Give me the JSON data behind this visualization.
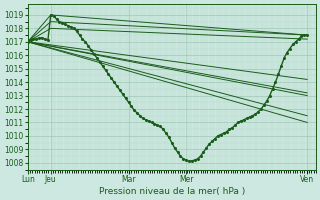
{
  "background_color": "#cce8e0",
  "grid_color_major": "#a0c8b8",
  "grid_color_minor": "#b8d8cc",
  "line_color": "#1a5c1a",
  "xlabel": "Pression niveau de la mer( hPa )",
  "ylim": [
    1007.5,
    1019.8
  ],
  "yticks": [
    1008,
    1009,
    1010,
    1011,
    1012,
    1013,
    1014,
    1015,
    1016,
    1017,
    1018,
    1019
  ],
  "xtick_labels": [
    "Lun",
    "Jeu",
    "Mar",
    "Mer",
    "Ven"
  ],
  "xtick_positions": [
    0.0,
    0.08,
    0.35,
    0.55,
    0.97
  ],
  "xlim": [
    0.0,
    1.0
  ],
  "fan_lines": [
    {
      "x": [
        0.0,
        0.08,
        0.97
      ],
      "y": [
        1017.0,
        1019.0,
        1017.5
      ]
    },
    {
      "x": [
        0.0,
        0.08,
        0.97
      ],
      "y": [
        1017.0,
        1018.5,
        1017.5
      ]
    },
    {
      "x": [
        0.0,
        0.08,
        0.97
      ],
      "y": [
        1017.0,
        1018.0,
        1017.2
      ]
    },
    {
      "x": [
        0.0,
        0.97
      ],
      "y": [
        1017.0,
        1014.2
      ]
    },
    {
      "x": [
        0.0,
        0.97
      ],
      "y": [
        1017.0,
        1013.2
      ]
    },
    {
      "x": [
        0.0,
        0.97
      ],
      "y": [
        1017.0,
        1013.0
      ]
    },
    {
      "x": [
        0.0,
        0.97
      ],
      "y": [
        1017.0,
        1011.5
      ]
    },
    {
      "x": [
        0.0,
        0.97
      ],
      "y": [
        1017.0,
        1011.0
      ]
    }
  ],
  "detailed_x": [
    0.0,
    0.01,
    0.02,
    0.03,
    0.04,
    0.05,
    0.06,
    0.07,
    0.08,
    0.09,
    0.1,
    0.11,
    0.12,
    0.13,
    0.14,
    0.15,
    0.16,
    0.17,
    0.18,
    0.19,
    0.2,
    0.21,
    0.22,
    0.23,
    0.24,
    0.25,
    0.26,
    0.27,
    0.28,
    0.29,
    0.3,
    0.31,
    0.32,
    0.33,
    0.34,
    0.35,
    0.36,
    0.37,
    0.38,
    0.39,
    0.4,
    0.41,
    0.42,
    0.43,
    0.44,
    0.45,
    0.46,
    0.47,
    0.48,
    0.49,
    0.5,
    0.51,
    0.52,
    0.53,
    0.54,
    0.55,
    0.56,
    0.57,
    0.58,
    0.59,
    0.6,
    0.61,
    0.62,
    0.63,
    0.64,
    0.65,
    0.66,
    0.67,
    0.68,
    0.69,
    0.7,
    0.71,
    0.72,
    0.73,
    0.74,
    0.75,
    0.76,
    0.77,
    0.78,
    0.79,
    0.8,
    0.81,
    0.82,
    0.83,
    0.84,
    0.85,
    0.86,
    0.87,
    0.88,
    0.89,
    0.9,
    0.91,
    0.92,
    0.93,
    0.94,
    0.95,
    0.96,
    0.97
  ],
  "detailed_y": [
    1017.0,
    1017.1,
    1017.2,
    1017.2,
    1017.3,
    1017.3,
    1017.2,
    1017.1,
    1019.0,
    1018.9,
    1018.7,
    1018.5,
    1018.4,
    1018.3,
    1018.2,
    1018.1,
    1018.0,
    1017.8,
    1017.5,
    1017.2,
    1017.0,
    1016.7,
    1016.4,
    1016.1,
    1015.8,
    1015.5,
    1015.2,
    1014.9,
    1014.6,
    1014.3,
    1014.0,
    1013.7,
    1013.4,
    1013.1,
    1012.8,
    1012.5,
    1012.2,
    1011.9,
    1011.7,
    1011.5,
    1011.3,
    1011.2,
    1011.1,
    1011.0,
    1010.9,
    1010.8,
    1010.7,
    1010.5,
    1010.2,
    1009.9,
    1009.5,
    1009.1,
    1008.8,
    1008.5,
    1008.3,
    1008.2,
    1008.1,
    1008.15,
    1008.2,
    1008.3,
    1008.5,
    1008.8,
    1009.1,
    1009.4,
    1009.6,
    1009.8,
    1010.0,
    1010.1,
    1010.2,
    1010.3,
    1010.5,
    1010.6,
    1010.8,
    1011.0,
    1011.1,
    1011.2,
    1011.3,
    1011.4,
    1011.5,
    1011.6,
    1011.8,
    1012.0,
    1012.3,
    1012.6,
    1013.0,
    1013.5,
    1014.0,
    1014.6,
    1015.2,
    1015.8,
    1016.2,
    1016.5,
    1016.8,
    1017.0,
    1017.2,
    1017.4,
    1017.5,
    1017.5
  ],
  "lw_fan": 0.7,
  "lw_detail": 1.0,
  "marker_size": 1.2,
  "tick_fontsize": 5.5,
  "xlabel_fontsize": 6.5
}
